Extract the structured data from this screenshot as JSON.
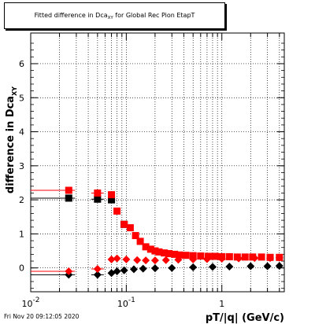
{
  "header": {
    "title_prefix": "Fitted difference in Dca",
    "title_sub": "XY",
    "title_suffix": " for Global Rec Pion EtapT"
  },
  "footer": {
    "timestamp": "Fri Nov 20 09:12:05 2020"
  },
  "chart_data": {
    "type": "scatter",
    "title": "Fitted difference in Dca_XY for Global Rec Pion EtapT",
    "xlabel": "pT/|q| (GeV/c)",
    "ylabel": "difference in Dca_XY",
    "xlog": true,
    "xlim": [
      0.01,
      4.5
    ],
    "ylim": [
      -0.7,
      6.9
    ],
    "grid": true,
    "x_ticks": [
      {
        "value": 0.01,
        "label": "10",
        "exp": "-2"
      },
      {
        "value": 0.1,
        "label": "10",
        "exp": "-1"
      },
      {
        "value": 1,
        "label": "1",
        "exp": ""
      }
    ],
    "y_ticks": [
      0,
      1,
      2,
      3,
      4,
      5,
      6
    ],
    "series": [
      {
        "color": "#000000",
        "marker": "square",
        "x": [
          0.025,
          0.05,
          0.07,
          0.095
        ],
        "y": [
          2.05,
          2.02,
          2.0,
          1.28
        ]
      },
      {
        "color": "#ff0000",
        "marker": "square",
        "x": [
          0.025,
          0.05,
          0.07,
          0.08,
          0.095,
          0.11,
          0.125,
          0.14,
          0.16,
          0.18,
          0.2,
          0.22,
          0.25,
          0.28,
          0.32,
          0.36,
          0.42,
          0.5,
          0.6,
          0.72,
          0.85,
          1.0,
          1.2,
          1.45,
          1.75,
          2.1,
          2.6,
          3.2,
          4.0
        ],
        "y": [
          2.28,
          2.2,
          2.15,
          1.67,
          1.28,
          1.18,
          0.95,
          0.78,
          0.62,
          0.55,
          0.5,
          0.47,
          0.44,
          0.42,
          0.4,
          0.38,
          0.37,
          0.36,
          0.35,
          0.34,
          0.34,
          0.33,
          0.33,
          0.32,
          0.32,
          0.32,
          0.32,
          0.31,
          0.31
        ]
      },
      {
        "color": "#000000",
        "marker": "diamond",
        "x": [
          0.025,
          0.05,
          0.07,
          0.08,
          0.095,
          0.12,
          0.15,
          0.2,
          0.3,
          0.5,
          0.8,
          1.2,
          2.0,
          3.0,
          4.0
        ],
        "y": [
          -0.2,
          -0.2,
          -0.15,
          -0.1,
          -0.07,
          -0.04,
          -0.02,
          -0.01,
          0.0,
          0.02,
          0.03,
          0.04,
          0.05,
          0.05,
          0.06
        ]
      },
      {
        "color": "#ff0000",
        "marker": "diamond",
        "x": [
          0.025,
          0.05,
          0.07,
          0.08,
          0.1,
          0.13,
          0.16,
          0.2,
          0.26,
          0.35,
          0.5,
          0.7,
          1.0,
          1.5,
          2.2,
          3.2,
          4.0
        ],
        "y": [
          -0.1,
          -0.03,
          0.25,
          0.28,
          0.25,
          0.23,
          0.22,
          0.22,
          0.23,
          0.24,
          0.25,
          0.26,
          0.27,
          0.28,
          0.29,
          0.29,
          0.3
        ]
      }
    ]
  }
}
